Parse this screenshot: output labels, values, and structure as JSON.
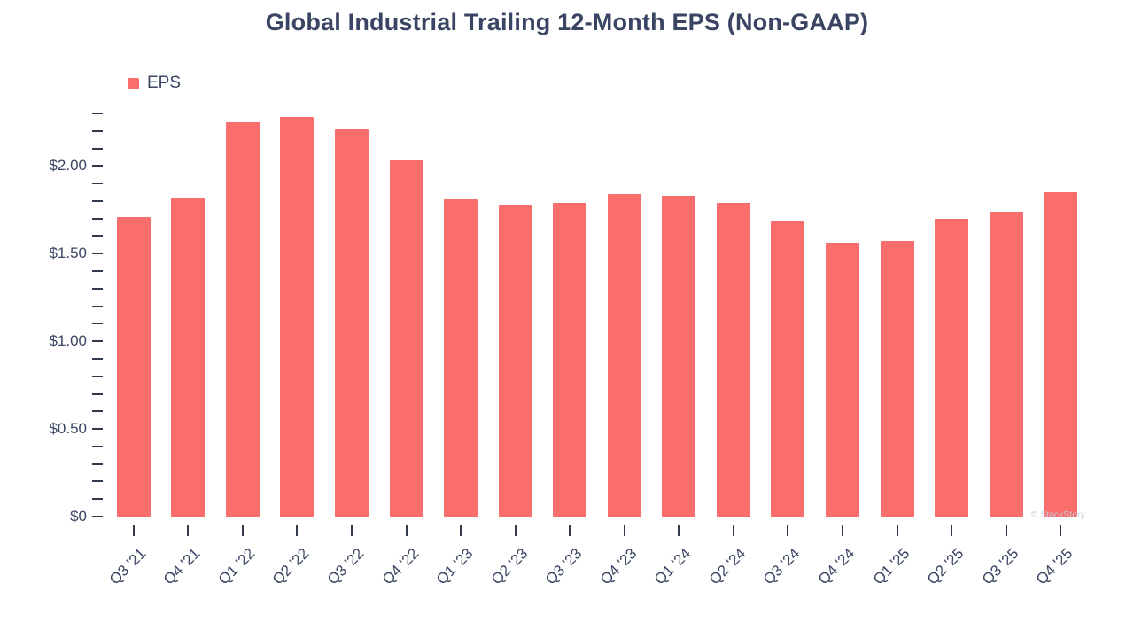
{
  "chart": {
    "title": "Global Industrial Trailing 12-Month EPS (Non-GAAP)",
    "legend_label": "EPS",
    "watermark": "© StockStory",
    "colors": {
      "bar": "#f96d6d",
      "text": "#3a4563",
      "tick": "#333a4d",
      "watermark": "#c6cbd4"
    }
  },
  "chart_data": {
    "type": "bar",
    "title": "Global Industrial Trailing 12-Month EPS (Non-GAAP)",
    "series_name": "EPS",
    "categories": [
      "Q3 '21",
      "Q4 '21",
      "Q1 '22",
      "Q2 '22",
      "Q3 '22",
      "Q4 '22",
      "Q1 '23",
      "Q2 '23",
      "Q3 '23",
      "Q4 '23",
      "Q1 '24",
      "Q2 '24",
      "Q3 '24",
      "Q4 '24",
      "Q1 '25",
      "Q2 '25",
      "Q3 '25",
      "Q4 '25"
    ],
    "values": [
      1.71,
      1.82,
      2.25,
      2.28,
      2.21,
      2.03,
      1.81,
      1.78,
      1.79,
      1.84,
      1.83,
      1.79,
      1.69,
      1.56,
      1.57,
      1.7,
      1.74,
      1.85
    ],
    "xlabel": "",
    "ylabel": "",
    "ylim": [
      0,
      2.3
    ],
    "y_minor_step": 0.1,
    "y_major_ticks": [
      {
        "value": 0.0,
        "label": "$0"
      },
      {
        "value": 0.5,
        "label": "$0.50"
      },
      {
        "value": 1.0,
        "label": "$1.00"
      },
      {
        "value": 1.5,
        "label": "$1.50"
      },
      {
        "value": 2.0,
        "label": "$2.00"
      }
    ],
    "grid": false,
    "legend_position": "top-left"
  }
}
